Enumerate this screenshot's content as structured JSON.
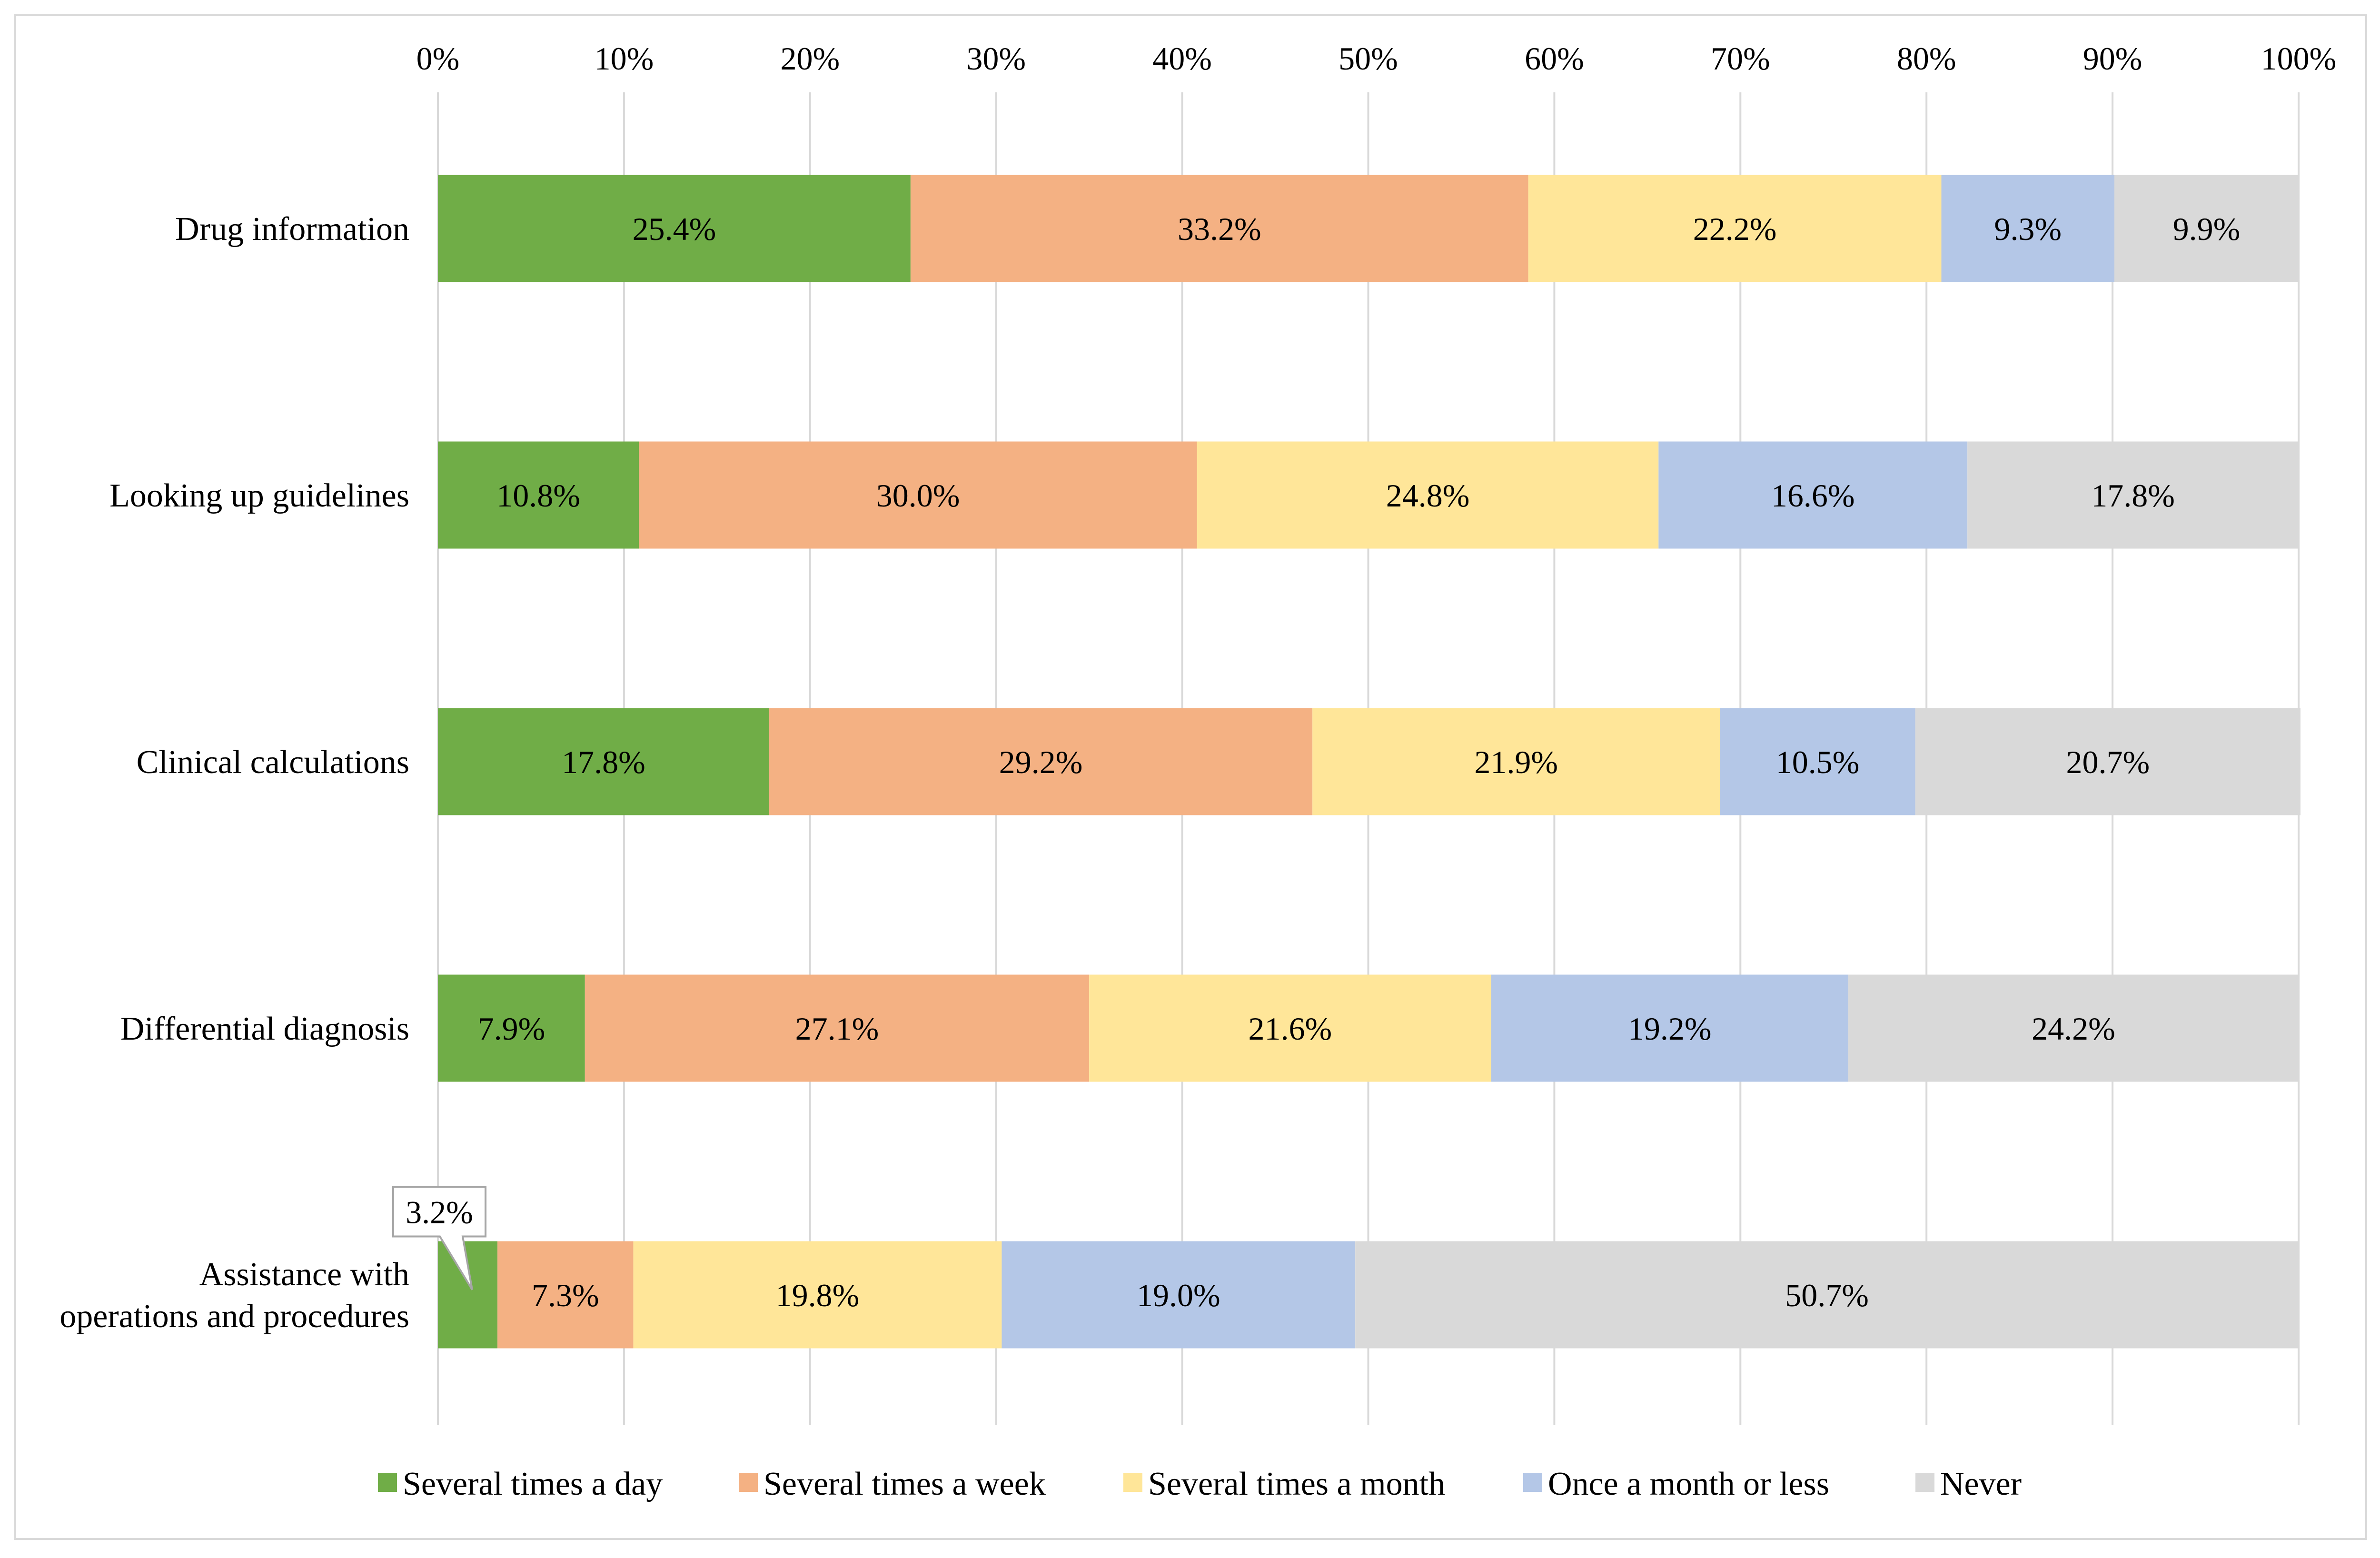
{
  "chart_data": {
    "type": "bar",
    "orientation": "horizontal",
    "stacked": true,
    "percent_stacked": true,
    "xlim": [
      0,
      100
    ],
    "x_ticks": [
      "0%",
      "10%",
      "20%",
      "30%",
      "40%",
      "50%",
      "60%",
      "70%",
      "80%",
      "90%",
      "100%"
    ],
    "grid": true,
    "legend_position": "bottom",
    "categories": [
      [
        "Drug information"
      ],
      [
        "Looking up guidelines"
      ],
      [
        "Clinical calculations"
      ],
      [
        "Differential diagnosis"
      ],
      [
        "Assistance with",
        "operations and procedures"
      ]
    ],
    "series": [
      {
        "name": "Several times a day",
        "color": "#70ad47",
        "values": [
          25.4,
          10.8,
          17.8,
          7.9,
          3.2
        ],
        "labels": [
          "25.4%",
          "10.8%",
          "17.8%",
          "7.9%",
          "3.2%"
        ]
      },
      {
        "name": "Several times a week",
        "color": "#f4b183",
        "values": [
          33.2,
          30.0,
          29.2,
          27.1,
          7.3
        ],
        "labels": [
          "33.2%",
          "30.0%",
          "29.2%",
          "27.1%",
          "7.3%"
        ]
      },
      {
        "name": "Several times a month",
        "color": "#ffe699",
        "values": [
          22.2,
          24.8,
          21.9,
          21.6,
          19.8
        ],
        "labels": [
          "22.2%",
          "24.8%",
          "21.9%",
          "21.6%",
          "19.8%"
        ]
      },
      {
        "name": "Once a month or less",
        "color": "#b4c7e7",
        "values": [
          9.3,
          16.6,
          10.5,
          19.2,
          19.0
        ],
        "labels": [
          "9.3%",
          "16.6%",
          "10.5%",
          "19.2%",
          "19.0%"
        ]
      },
      {
        "name": "Never",
        "color": "#d9d9d9",
        "values": [
          9.9,
          17.8,
          20.7,
          24.2,
          50.7
        ],
        "labels": [
          "9.9%",
          "17.8%",
          "20.7%",
          "24.2%",
          "50.7%"
        ]
      }
    ],
    "callouts": [
      {
        "category_index": 4,
        "series_index": 0,
        "text": "3.2%"
      }
    ]
  }
}
